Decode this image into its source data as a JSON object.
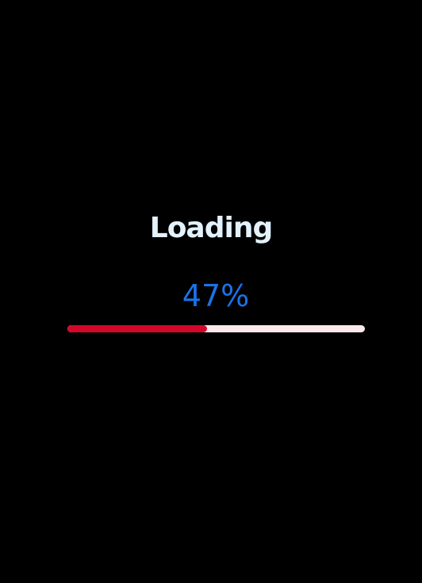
{
  "loader": {
    "title": "Loading",
    "percent_label": "47%",
    "progress_fraction": 0.47
  },
  "colors": {
    "background": "#000000",
    "title": "#e3f2fd",
    "percent": "#1a73e8",
    "progress_fill": "#d4072b",
    "progress_track": "#fde9ec"
  }
}
